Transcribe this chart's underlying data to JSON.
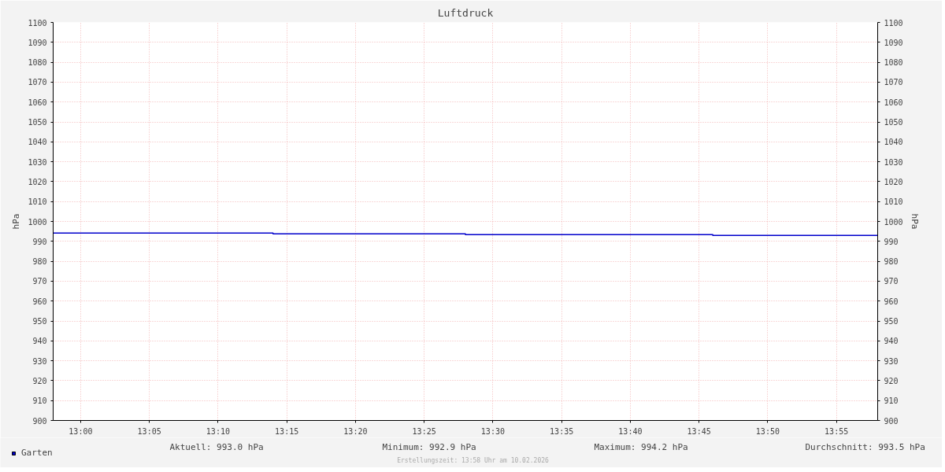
{
  "chart_data": {
    "type": "step",
    "title": "Luftdruck",
    "ylabel": "hPa",
    "y2label": "hPa",
    "x": [
      12.966667,
      13.233333,
      13.466667,
      13.766667,
      13.966667
    ],
    "series": [
      {
        "name": "Garten",
        "color": "#0000cc",
        "values": [
          994.2,
          993.8,
          993.4,
          993.0,
          993.0
        ]
      }
    ],
    "xlim": [
      12.966667,
      13.966667
    ],
    "xticks": [
      {
        "value": 13.0,
        "label": "13:00"
      },
      {
        "value": 13.083333,
        "label": "13:05"
      },
      {
        "value": 13.166667,
        "label": "13:10"
      },
      {
        "value": 13.25,
        "label": "13:15"
      },
      {
        "value": 13.333333,
        "label": "13:20"
      },
      {
        "value": 13.416667,
        "label": "13:25"
      },
      {
        "value": 13.5,
        "label": "13:30"
      },
      {
        "value": 13.583333,
        "label": "13:35"
      },
      {
        "value": 13.666667,
        "label": "13:40"
      },
      {
        "value": 13.75,
        "label": "13:45"
      },
      {
        "value": 13.833333,
        "label": "13:50"
      },
      {
        "value": 13.916667,
        "label": "13:55"
      }
    ],
    "ylim": [
      900,
      1100
    ],
    "yticks": [
      900,
      910,
      920,
      930,
      940,
      950,
      960,
      970,
      980,
      990,
      1000,
      1010,
      1020,
      1030,
      1040,
      1050,
      1060,
      1070,
      1080,
      1090,
      1100
    ],
    "y2lim": [
      900,
      1100
    ],
    "y2ticks": [
      900,
      910,
      920,
      930,
      940,
      950,
      960,
      970,
      980,
      990,
      1000,
      1010,
      1020,
      1030,
      1040,
      1050,
      1060,
      1070,
      1080,
      1090,
      1100
    ],
    "grid": true,
    "legend": "bottom left",
    "line_style": "solid",
    "annotations": [
      "Aktuell: 993.0 hPa",
      "Minimum: 992.9 hPa",
      "Maximum: 994.2 hPa",
      "Durchschnitt: 993.5 hPa",
      "Erstellungszeit: 13:58 Uhr am 10.02.2026"
    ]
  }
}
